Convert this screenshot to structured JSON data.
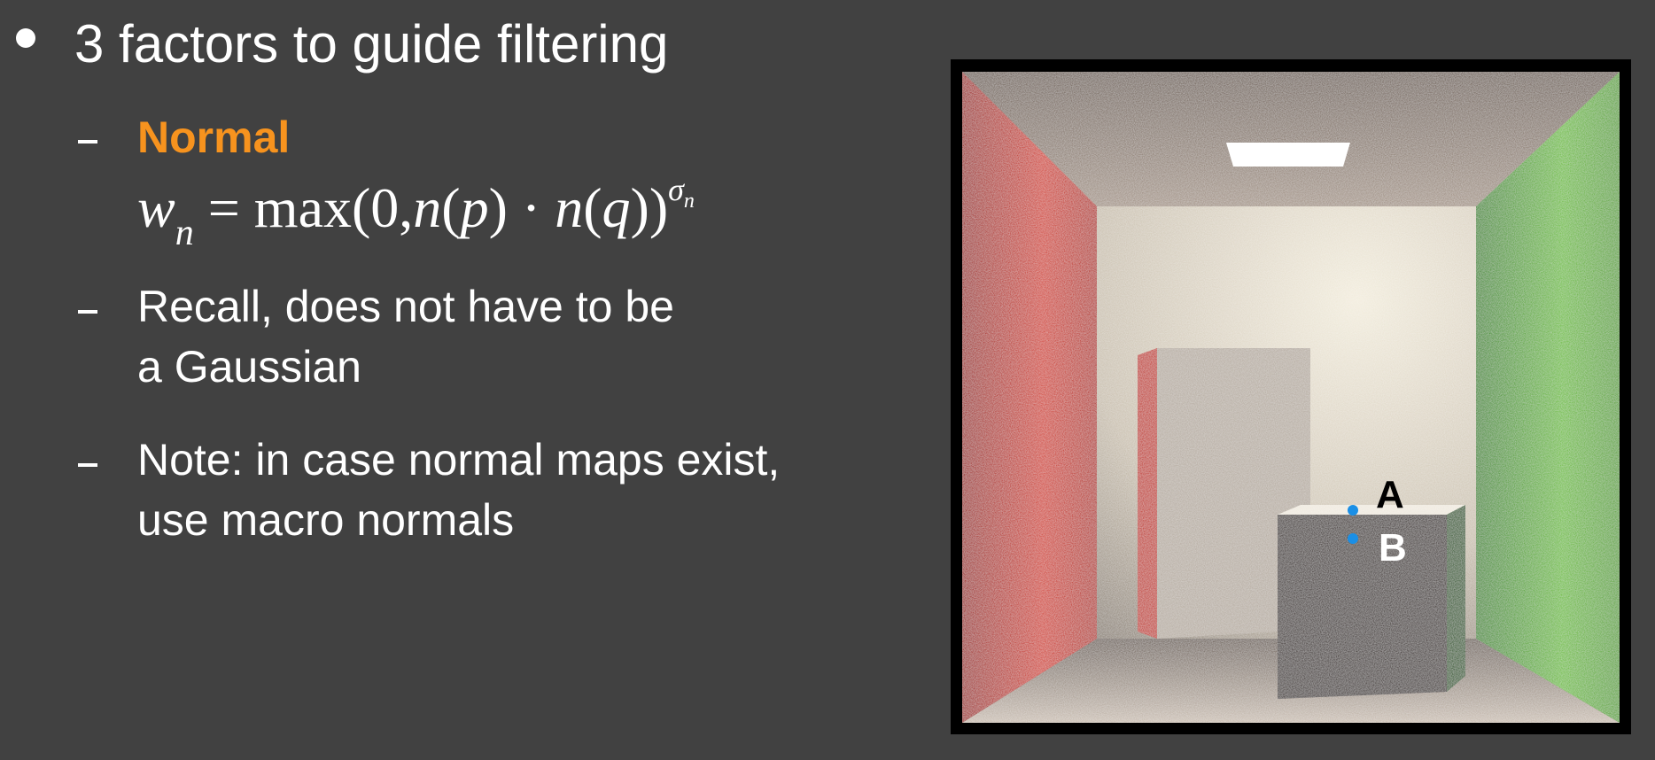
{
  "slide": {
    "bullet": "3 factors to guide filtering",
    "items": [
      {
        "label": "Normal",
        "formula": {
          "w": "w",
          "w_sub": "n",
          "equals": " = max(0,",
          "n1": "n",
          "p_paren": "(",
          "p": "p",
          "p_close": ") · ",
          "n2": "n",
          "q_paren": "(",
          "q": "q",
          "q_close": "))",
          "exp": "σ",
          "exp_sub": "n"
        }
      },
      {
        "line1": "Recall, does not have to be",
        "line2": "a Gaussian"
      },
      {
        "line1": "Note: in case normal maps exist,",
        "line2": "use macro normals"
      }
    ]
  },
  "render": {
    "labels": {
      "a": "A",
      "b": "B"
    },
    "colors": {
      "left_wall": "#c8281c",
      "right_wall": "#4a9a2c",
      "back_wall": "#d8cdbb",
      "ceiling": "#8d7e71",
      "floor": "#a2968c",
      "tall_box": "#b4aa9f",
      "small_box": "#3a2f2c",
      "marker": "#1a8fe6",
      "frame": "#000000"
    }
  },
  "colors": {
    "background": "#414141",
    "text": "#ffffff",
    "accent": "#f7931e"
  }
}
